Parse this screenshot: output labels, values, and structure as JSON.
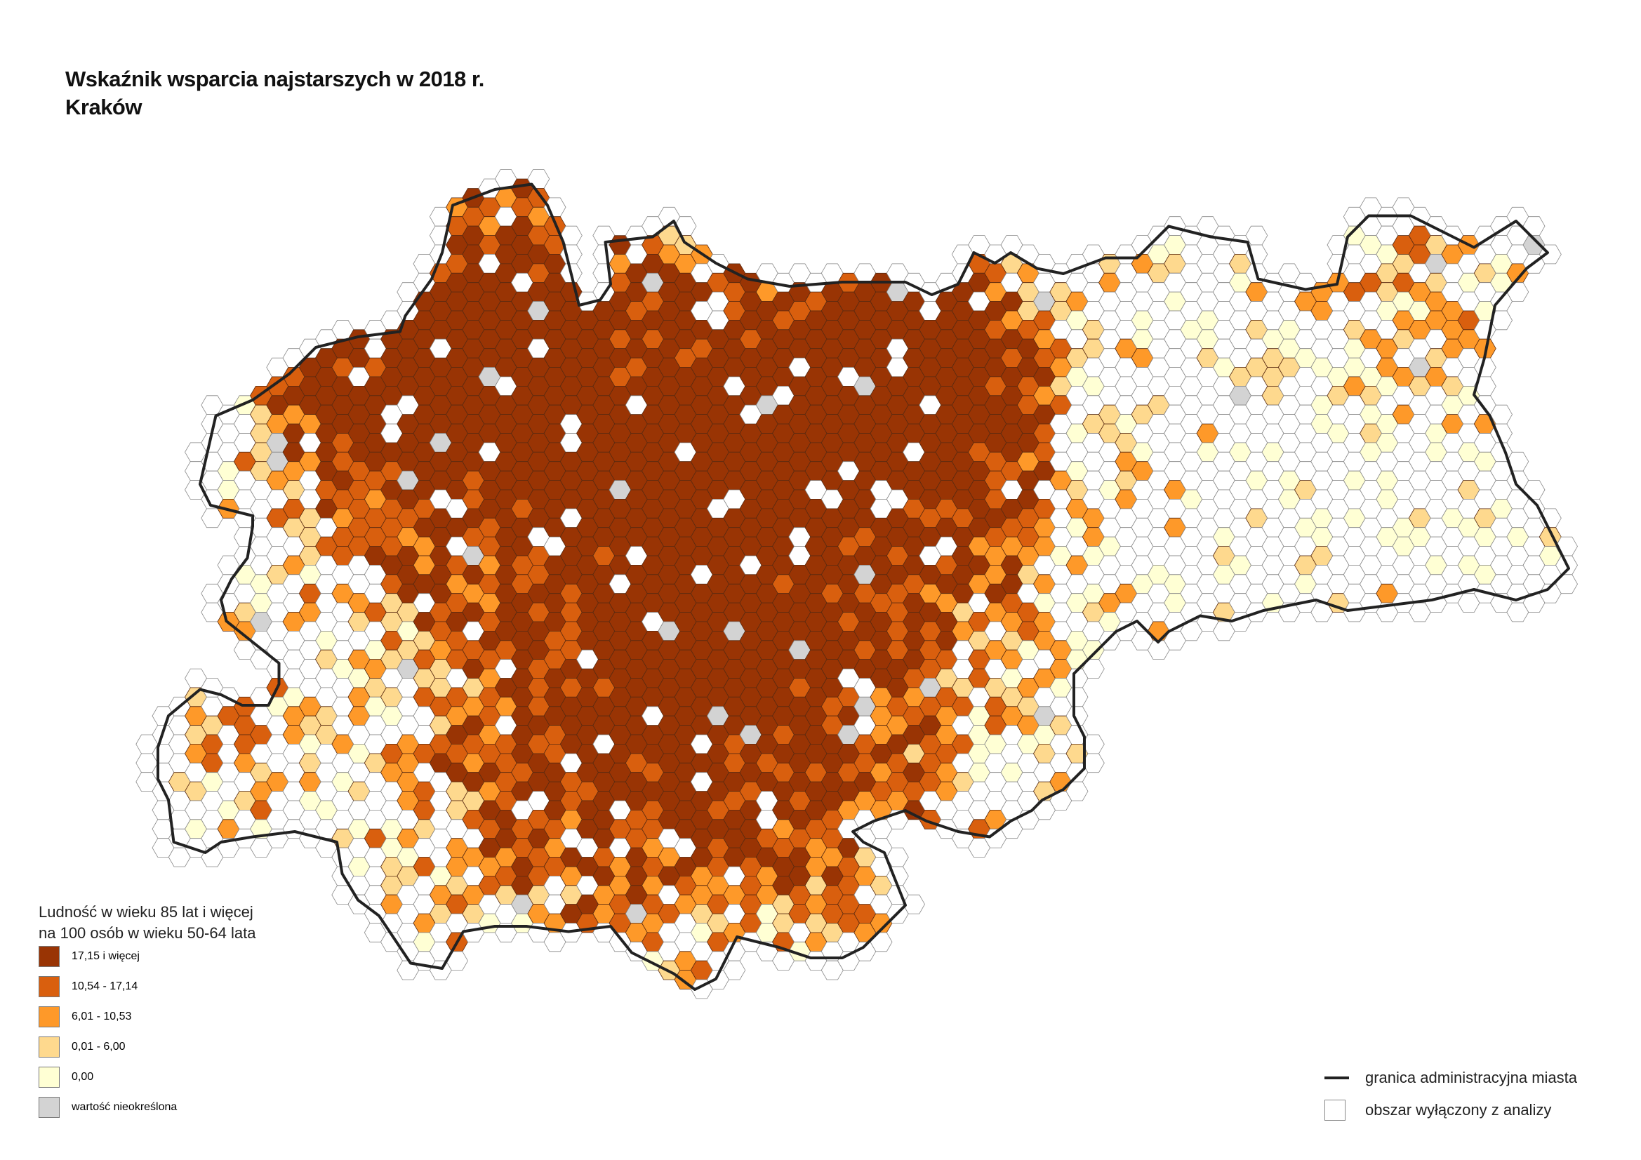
{
  "title": {
    "line1": "Wskaźnik wsparcia najstarszych w 2018 r.",
    "line2": "Kraków"
  },
  "legend": {
    "heading_line1": "Ludność w wieku 85 lat i więcej",
    "heading_line2": "na 100 osób w wieku 50-64 lata",
    "classes": [
      {
        "label": "17,15 i więcej",
        "color": "#993404"
      },
      {
        "label": "10,54 - 17,14",
        "color": "#d95f0e"
      },
      {
        "label": "6,01 - 10,53",
        "color": "#fe9929"
      },
      {
        "label": "0,01 - 6,00",
        "color": "#fed98e"
      },
      {
        "label": "0,00",
        "color": "#ffffd4"
      },
      {
        "label": "wartość nieokreślona",
        "color": "#d3d3d3"
      }
    ],
    "boundary": {
      "label": "granica administracyjna miasta",
      "color": "#222222"
    },
    "excluded": {
      "label": "obszar wyłączony z analizy",
      "color": "#ffffff"
    }
  }
}
